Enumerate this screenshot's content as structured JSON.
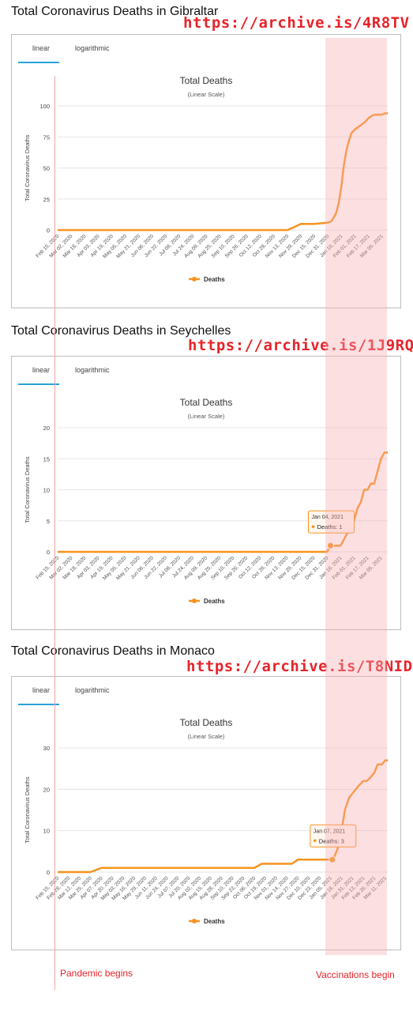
{
  "annotations": {
    "pandemic_label": "Pandemic begins",
    "vaccination_label": "Vaccinations begin",
    "band_color": "#f8aaaf",
    "link_color": "#e8232a"
  },
  "tabs": {
    "linear": "linear",
    "logarithmic": "logarithmic",
    "active_color": "#29a3d9"
  },
  "sections": [
    {
      "heading": "Total Coronavirus Deaths in Gibraltar",
      "archive_link": "https://archive.is/4R8TV"
    },
    {
      "heading": "Total Coronavirus Deaths in Seychelles",
      "archive_link": "https://archive.is/1J9RQ"
    },
    {
      "heading": "Total Coronavirus Deaths in Monaco",
      "archive_link": "https://archive.is/T8NID"
    }
  ],
  "chart_data": [
    {
      "type": "line",
      "title": "Total Deaths",
      "subtitle": "(Linear Scale)",
      "ylabel": "Total Coronavirus Deaths",
      "xlabel": "",
      "ylim": [
        0,
        100
      ],
      "yticks": [
        0,
        25,
        50,
        75,
        100
      ],
      "grid": true,
      "legend": "bottom",
      "line_color": "#f7931e",
      "x_ticks": [
        "Feb 15, 2020",
        "Mar 02, 2020",
        "Mar 18, 2020",
        "Apr 03, 2020",
        "Apr 19, 2020",
        "May 05, 2020",
        "May 21, 2020",
        "Jun 06, 2020",
        "Jun 22, 2020",
        "Jul 08, 2020",
        "Jul 24, 2020",
        "Aug 09, 2020",
        "Aug 25, 2020",
        "Sep 10, 2020",
        "Sep 26, 2020",
        "Oct 12, 2020",
        "Oct 28, 2020",
        "Nov 13, 2020",
        "Nov 29, 2020",
        "Dec 15, 2020",
        "Dec 31, 2020",
        "Jan 16, 2021",
        "Feb 01, 2021",
        "Feb 17, 2021",
        "Mar 05, 2021"
      ],
      "series": [
        {
          "name": "Deaths",
          "x": [
            "Feb 15, 2020",
            "Nov 13, 2020",
            "Nov 20, 2020",
            "Nov 29, 2020",
            "Dec 15, 2020",
            "Dec 31, 2020",
            "Jan 04, 2021",
            "Jan 07, 2021",
            "Jan 10, 2021",
            "Jan 13, 2021",
            "Jan 16, 2021",
            "Jan 19, 2021",
            "Jan 22, 2021",
            "Jan 25, 2021",
            "Jan 28, 2021",
            "Feb 01, 2021",
            "Feb 05, 2021",
            "Feb 09, 2021",
            "Feb 13, 2021",
            "Feb 17, 2021",
            "Feb 21, 2021",
            "Feb 25, 2021",
            "Mar 01, 2021",
            "Mar 05, 2021",
            "Mar 09, 2021",
            "Mar 12, 2021"
          ],
          "values": [
            0,
            0,
            2,
            5,
            5,
            6,
            7,
            10,
            14,
            22,
            35,
            52,
            64,
            72,
            78,
            81,
            83,
            85,
            87,
            90,
            92,
            93,
            93,
            93,
            94,
            94
          ]
        }
      ]
    },
    {
      "type": "line",
      "title": "Total Deaths",
      "subtitle": "(Linear Scale)",
      "ylabel": "Total Coronavirus Deaths",
      "xlabel": "",
      "ylim": [
        0,
        20
      ],
      "yticks": [
        0,
        5,
        10,
        15,
        20
      ],
      "grid": true,
      "legend": "bottom",
      "line_color": "#f7931e",
      "tooltip": {
        "date": "Jan 04, 2021",
        "text": "Deaths: 1",
        "x": "Jan 04, 2021",
        "y": 1
      },
      "x_ticks": [
        "Feb 15, 2020",
        "Mar 02, 2020",
        "Mar 18, 2020",
        "Apr 03, 2020",
        "Apr 19, 2020",
        "May 05, 2020",
        "May 21, 2020",
        "Jun 06, 2020",
        "Jun 22, 2020",
        "Jul 08, 2020",
        "Jul 24, 2020",
        "Aug 09, 2020",
        "Aug 25, 2020",
        "Sep 10, 2020",
        "Sep 26, 2020",
        "Oct 12, 2020",
        "Oct 28, 2020",
        "Nov 13, 2020",
        "Nov 29, 2020",
        "Dec 15, 2020",
        "Dec 31, 2020",
        "Jan 16, 2021",
        "Feb 01, 2021",
        "Feb 17, 2021",
        "Mar 05, 2021"
      ],
      "series": [
        {
          "name": "Deaths",
          "x": [
            "Feb 15, 2020",
            "Dec 31, 2020",
            "Jan 04, 2021",
            "Jan 16, 2021",
            "Jan 20, 2021",
            "Jan 24, 2021",
            "Jan 28, 2021",
            "Feb 01, 2021",
            "Feb 05, 2021",
            "Feb 09, 2021",
            "Feb 13, 2021",
            "Feb 17, 2021",
            "Feb 21, 2021",
            "Feb 25, 2021",
            "Mar 01, 2021",
            "Mar 05, 2021",
            "Mar 09, 2021",
            "Mar 13, 2021"
          ],
          "values": [
            0,
            0,
            1,
            1,
            2,
            3,
            4,
            5,
            7,
            8,
            10,
            10,
            11,
            11,
            13,
            15,
            16,
            16
          ]
        }
      ]
    },
    {
      "type": "line",
      "title": "Total Deaths",
      "subtitle": "(Linear Scale)",
      "ylabel": "Total Coronavirus Deaths",
      "xlabel": "",
      "ylim": [
        0,
        30
      ],
      "yticks": [
        0,
        10,
        20,
        30
      ],
      "grid": true,
      "legend": "bottom",
      "line_color": "#f7931e",
      "tooltip": {
        "date": "Jan 07, 2021",
        "text": "Deaths: 3",
        "x": "Jan 07, 2021",
        "y": 3
      },
      "x_ticks": [
        "Feb 15, 2020",
        "Feb 28, 2020",
        "Mar 12, 2020",
        "Mar 25, 2020",
        "Apr 07, 2020",
        "Apr 20, 2020",
        "May 03, 2020",
        "May 16, 2020",
        "May 29, 2020",
        "Jun 11, 2020",
        "Jun 24, 2020",
        "Jul 07, 2020",
        "Jul 20, 2020",
        "Aug 02, 2020",
        "Aug 15, 2020",
        "Aug 28, 2020",
        "Sep 10, 2020",
        "Sep 23, 2020",
        "Oct 06, 2020",
        "Oct 19, 2020",
        "Nov 01, 2020",
        "Nov 14, 2020",
        "Nov 27, 2020",
        "Dec 10, 2020",
        "Dec 23, 2020",
        "Jan 05, 2021",
        "Jan 18, 2021",
        "Jan 31, 2021",
        "Feb 13, 2021",
        "Feb 26, 2021",
        "Mar 11, 2021"
      ],
      "series": [
        {
          "name": "Deaths",
          "x": [
            "Feb 15, 2020",
            "Mar 25, 2020",
            "Apr 07, 2020",
            "Oct 06, 2020",
            "Oct 15, 2020",
            "Nov 20, 2020",
            "Nov 27, 2020",
            "Jan 07, 2021",
            "Jan 10, 2021",
            "Jan 14, 2021",
            "Jan 18, 2021",
            "Jan 22, 2021",
            "Jan 27, 2021",
            "Jan 31, 2021",
            "Feb 04, 2021",
            "Feb 08, 2021",
            "Feb 13, 2021",
            "Feb 17, 2021",
            "Feb 22, 2021",
            "Feb 26, 2021",
            "Mar 02, 2021",
            "Mar 07, 2021",
            "Mar 11, 2021",
            "Mar 14, 2021"
          ],
          "values": [
            0,
            0,
            1,
            1,
            2,
            2,
            3,
            3,
            4,
            6,
            10,
            15,
            18,
            19,
            20,
            21,
            22,
            22,
            23,
            24,
            26,
            26,
            27,
            27
          ]
        }
      ]
    }
  ]
}
